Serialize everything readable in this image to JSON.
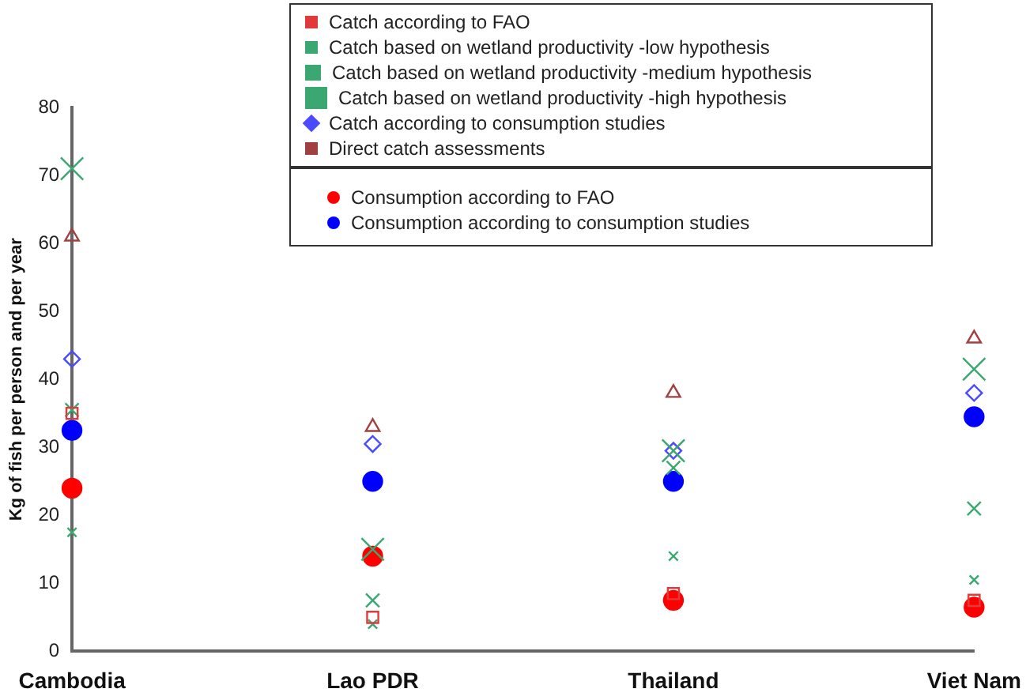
{
  "chart_data": {
    "type": "scatter",
    "ylabel": "Kg of fish per person and per year",
    "categories": [
      "Cambodia",
      "Lao PDR",
      "Thailand",
      "Viet Nam"
    ],
    "ylim": [
      0,
      80
    ],
    "yticks": [
      0,
      10,
      20,
      30,
      40,
      50,
      60,
      70,
      80
    ],
    "grid": false,
    "legend": "top",
    "series": [
      {
        "name": "Catch according to FAO",
        "color": "#e03a3a",
        "marker": "square",
        "values": [
          35,
          5,
          8.5,
          7.5
        ]
      },
      {
        "name": "Catch based on wetland productivity -low hypothesis",
        "color": "#3aa870",
        "marker": "cross",
        "values": [
          17.5,
          4,
          14,
          10.5
        ]
      },
      {
        "name": "Catch based on wetland productivity -medium hypothesis",
        "color": "#3aa870",
        "marker": "cross",
        "values": [
          35.5,
          7.5,
          27,
          21
        ]
      },
      {
        "name": "Catch based on wetland productivity -high hypothesis",
        "color": "#3aa870",
        "marker": "cross",
        "values": [
          71,
          15,
          29.5,
          41.5
        ]
      },
      {
        "name": "Catch according to consumption studies",
        "color": "#4a4aff",
        "marker": "diamond",
        "values": [
          43,
          30.5,
          29.5,
          38
        ]
      },
      {
        "name": "Direct catch assessments",
        "color": "#a04040",
        "marker": "triangle",
        "values": [
          61,
          33,
          38,
          46
        ]
      },
      {
        "name": "Consumption according to FAO",
        "color": "#ff0000",
        "marker": "circle",
        "values": [
          24,
          14,
          7.5,
          6.5
        ]
      },
      {
        "name": "Consumption according to consumption studies",
        "color": "#0000ff",
        "marker": "circle",
        "values": [
          32.5,
          25,
          25,
          34.5
        ]
      }
    ]
  }
}
